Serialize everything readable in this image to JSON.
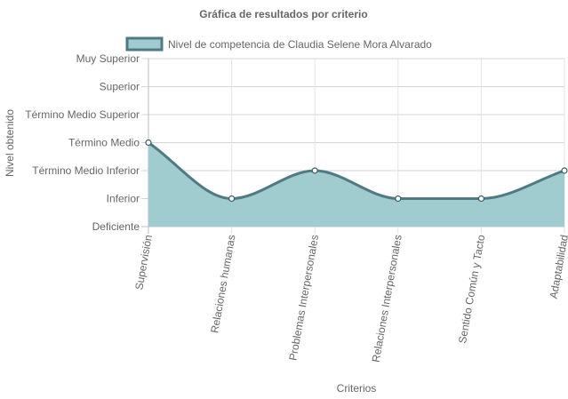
{
  "chart_data": {
    "type": "area",
    "title": "Gráfica de resultados por criterio",
    "xlabel": "Criterios",
    "ylabel": "Nivel obtenido",
    "y_levels": [
      "Deficiente",
      "Inferior",
      "Término Medio Inferior",
      "Término Medio",
      "Término Medio Superior",
      "Superior",
      "Muy Superior"
    ],
    "ylim": [
      0,
      6
    ],
    "categories": [
      "Supervisión",
      "Relaciones humanas",
      "Problemas Interpersonales",
      "Relaciones Interpersonales",
      "Sentido Común y Tacto",
      "Adaptabilidad"
    ],
    "series": [
      {
        "name": "Nivel de competencia de Claudia Selene Mora Alvarado",
        "values": [
          3,
          1,
          2,
          1,
          1,
          2
        ],
        "fill_color": "#a0cccf",
        "line_color": "#4f7a84"
      }
    ],
    "grid": true,
    "legend_position": "top"
  }
}
